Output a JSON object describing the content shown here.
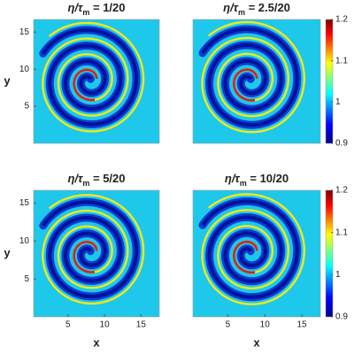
{
  "chart_data": [
    {
      "type": "heatmap",
      "title": [
        "η/τ",
        "m",
        " = 1/20"
      ],
      "ylabel": "y",
      "xlim": [
        0.3,
        17.5
      ],
      "ylim": [
        0,
        16.7
      ],
      "yticks": [
        5,
        10,
        15
      ]
    },
    {
      "type": "heatmap",
      "title": [
        "η/τ",
        "m",
        " = 2.5/20"
      ],
      "xlim": [
        0.3,
        17.5
      ],
      "ylim": [
        0,
        16.7
      ],
      "clim": [
        0.9,
        1.2
      ],
      "cticks": [
        0.9,
        1,
        1.1,
        1.2
      ]
    },
    {
      "type": "heatmap",
      "title": [
        "η/τ",
        "m",
        " = 5/20"
      ],
      "xlabel": "x",
      "ylabel": "y",
      "xlim": [
        0.3,
        17.5
      ],
      "ylim": [
        0,
        16.7
      ],
      "xticks": [
        5,
        10,
        15
      ],
      "yticks": [
        5,
        10,
        15
      ]
    },
    {
      "type": "heatmap",
      "title": [
        "η/τ",
        "m",
        " = 10/20"
      ],
      "xlabel": "x",
      "xlim": [
        0.3,
        17.5
      ],
      "ylim": [
        0,
        16.7
      ],
      "xticks": [
        5,
        10,
        15
      ],
      "clim": [
        0.9,
        1.2
      ],
      "cticks": [
        0.9,
        1,
        1.1,
        1.2
      ]
    }
  ]
}
